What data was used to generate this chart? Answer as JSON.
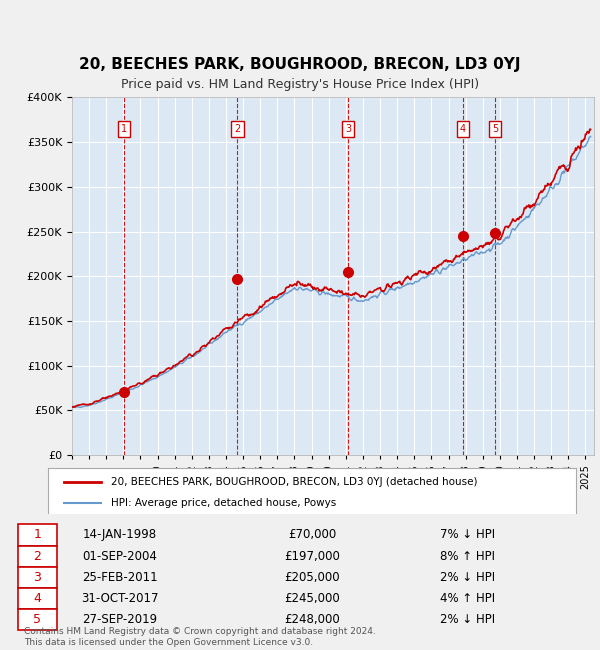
{
  "title": "20, BEECHES PARK, BOUGHROOD, BRECON, LD3 0YJ",
  "subtitle": "Price paid vs. HM Land Registry's House Price Index (HPI)",
  "transactions": [
    {
      "num": 1,
      "date": "14-JAN-1998",
      "date_val": 1998.04,
      "price": 70000,
      "pct": "7%",
      "dir": "↓"
    },
    {
      "num": 2,
      "date": "01-SEP-2004",
      "date_val": 2004.67,
      "price": 197000,
      "pct": "8%",
      "dir": "↑"
    },
    {
      "num": 3,
      "date": "25-FEB-2011",
      "date_val": 2011.15,
      "price": 205000,
      "pct": "2%",
      "dir": "↓"
    },
    {
      "num": 4,
      "date": "31-OCT-2017",
      "date_val": 2017.83,
      "price": 245000,
      "pct": "4%",
      "dir": "↑"
    },
    {
      "num": 5,
      "date": "27-SEP-2019",
      "date_val": 2019.74,
      "price": 248000,
      "pct": "2%",
      "dir": "↓"
    }
  ],
  "property_line_color": "#cc0000",
  "hpi_line_color": "#6699cc",
  "vline_color": "#cc0000",
  "dot_color": "#cc0000",
  "background_color": "#dce9f5",
  "plot_bg_color": "#dce9f5",
  "grid_color": "#ffffff",
  "legend_label_property": "20, BEECHES PARK, BOUGHROOD, BRECON, LD3 0YJ (detached house)",
  "legend_label_hpi": "HPI: Average price, detached house, Powys",
  "footer": "Contains HM Land Registry data © Crown copyright and database right 2024.\nThis data is licensed under the Open Government Licence v3.0.",
  "ylim": [
    0,
    400000
  ],
  "xlim_start": 1995.0,
  "xlim_end": 2025.5
}
